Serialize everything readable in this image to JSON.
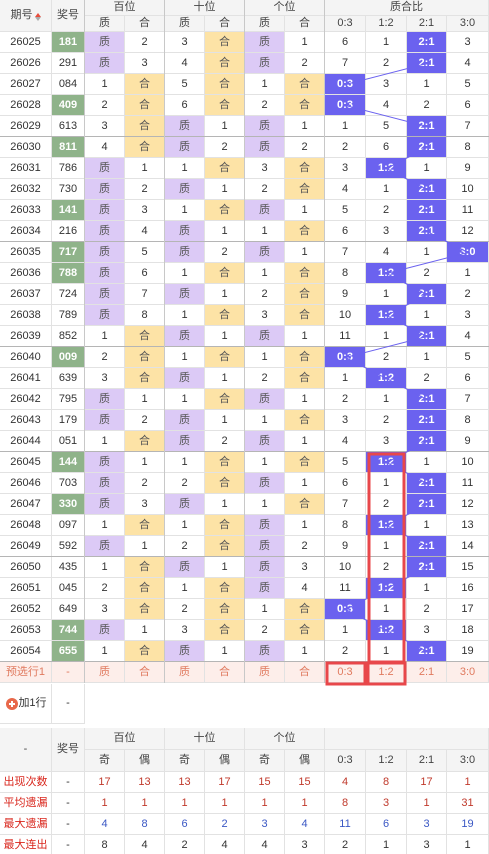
{
  "header": {
    "issue": "期号",
    "number": "奖号",
    "groups": [
      {
        "name": "百位",
        "cols": [
          "质",
          "合"
        ]
      },
      {
        "name": "十位",
        "cols": [
          "质",
          "合"
        ]
      },
      {
        "name": "个位",
        "cols": [
          "质",
          "合"
        ]
      }
    ],
    "ratio": {
      "name": "质合比",
      "cols": [
        "0:3",
        "1:2",
        "2:1",
        "3:0"
      ]
    }
  },
  "rows": [
    {
      "issue": "26025",
      "number": "181",
      "highlight": true,
      "cells": [
        "质",
        2,
        3,
        "合",
        "质",
        1
      ],
      "ratio": [
        6,
        1,
        "2:1",
        3
      ]
    },
    {
      "issue": "26026",
      "number": "291",
      "cells": [
        "质",
        3,
        4,
        "合",
        "质",
        2
      ],
      "ratio": [
        7,
        2,
        "2:1",
        4
      ]
    },
    {
      "issue": "26027",
      "number": "084",
      "cells": [
        1,
        "合",
        5,
        "合",
        1,
        "合"
      ],
      "ratio": [
        "0:3",
        3,
        1,
        5
      ]
    },
    {
      "issue": "26028",
      "number": "409",
      "highlight": true,
      "cells": [
        2,
        "合",
        6,
        "合",
        2,
        "合"
      ],
      "ratio": [
        "0:3",
        4,
        2,
        6
      ]
    },
    {
      "issue": "26029",
      "number": "613",
      "cells": [
        3,
        "合",
        "质",
        1,
        "质",
        1
      ],
      "ratio": [
        1,
        5,
        "2:1",
        7
      ]
    },
    {
      "issue": "26030",
      "number": "811",
      "highlight": true,
      "cells": [
        4,
        "合",
        "质",
        2,
        "质",
        2
      ],
      "ratio": [
        2,
        6,
        "2:1",
        8
      ]
    },
    {
      "issue": "26031",
      "number": "786",
      "cells": [
        "质",
        1,
        1,
        "合",
        3,
        "合"
      ],
      "ratio": [
        3,
        "1:2",
        1,
        9
      ]
    },
    {
      "issue": "26032",
      "number": "730",
      "cells": [
        "质",
        2,
        "质",
        1,
        2,
        "合"
      ],
      "ratio": [
        4,
        1,
        "2:1",
        10
      ]
    },
    {
      "issue": "26033",
      "number": "141",
      "highlight": true,
      "cells": [
        "质",
        3,
        1,
        "合",
        "质",
        1
      ],
      "ratio": [
        5,
        2,
        "2:1",
        11
      ]
    },
    {
      "issue": "26034",
      "number": "216",
      "cells": [
        "质",
        4,
        "质",
        1,
        1,
        "合"
      ],
      "ratio": [
        6,
        3,
        "2:1",
        12
      ]
    },
    {
      "issue": "26035",
      "number": "717",
      "highlight": true,
      "cells": [
        "质",
        5,
        "质",
        2,
        "质",
        1
      ],
      "ratio": [
        7,
        4,
        1,
        "3:0"
      ]
    },
    {
      "issue": "26036",
      "number": "788",
      "highlight": true,
      "cells": [
        "质",
        6,
        1,
        "合",
        1,
        "合"
      ],
      "ratio": [
        8,
        "1:2",
        2,
        1
      ]
    },
    {
      "issue": "26037",
      "number": "724",
      "cells": [
        "质",
        7,
        "质",
        1,
        2,
        "合"
      ],
      "ratio": [
        9,
        1,
        "2:1",
        2
      ]
    },
    {
      "issue": "26038",
      "number": "789",
      "cells": [
        "质",
        8,
        1,
        "合",
        3,
        "合"
      ],
      "ratio": [
        10,
        "1:2",
        1,
        3
      ]
    },
    {
      "issue": "26039",
      "number": "852",
      "cells": [
        1,
        "合",
        "质",
        1,
        "质",
        1
      ],
      "ratio": [
        11,
        1,
        "2:1",
        4
      ]
    },
    {
      "issue": "26040",
      "number": "009",
      "highlight": true,
      "cells": [
        2,
        "合",
        1,
        "合",
        1,
        "合"
      ],
      "ratio": [
        "0:3",
        2,
        1,
        5
      ]
    },
    {
      "issue": "26041",
      "number": "639",
      "cells": [
        3,
        "合",
        "质",
        1,
        2,
        "合"
      ],
      "ratio": [
        1,
        "1:2",
        2,
        6
      ]
    },
    {
      "issue": "26042",
      "number": "795",
      "cells": [
        "质",
        1,
        1,
        "合",
        "质",
        1
      ],
      "ratio": [
        2,
        1,
        "2:1",
        7
      ]
    },
    {
      "issue": "26043",
      "number": "179",
      "cells": [
        "质",
        2,
        "质",
        1,
        1,
        "合"
      ],
      "ratio": [
        3,
        2,
        "2:1",
        8
      ]
    },
    {
      "issue": "26044",
      "number": "051",
      "cells": [
        1,
        "合",
        "质",
        2,
        "质",
        1
      ],
      "ratio": [
        4,
        3,
        "2:1",
        9
      ]
    },
    {
      "issue": "26045",
      "number": "144",
      "highlight": true,
      "cells": [
        "质",
        1,
        1,
        "合",
        1,
        "合"
      ],
      "ratio": [
        5,
        "1:2",
        1,
        10
      ]
    },
    {
      "issue": "26046",
      "number": "703",
      "cells": [
        "质",
        2,
        2,
        "合",
        "质",
        1
      ],
      "ratio": [
        6,
        1,
        "2:1",
        11
      ]
    },
    {
      "issue": "26047",
      "number": "330",
      "highlight": true,
      "cells": [
        "质",
        3,
        "质",
        1,
        1,
        "合"
      ],
      "ratio": [
        7,
        2,
        "2:1",
        12
      ]
    },
    {
      "issue": "26048",
      "number": "097",
      "cells": [
        1,
        "合",
        1,
        "合",
        "质",
        1
      ],
      "ratio": [
        8,
        "1:2",
        1,
        13
      ]
    },
    {
      "issue": "26049",
      "number": "592",
      "cells": [
        "质",
        1,
        2,
        "合",
        "质",
        2
      ],
      "ratio": [
        9,
        1,
        "2:1",
        14
      ]
    },
    {
      "issue": "26050",
      "number": "435",
      "cells": [
        1,
        "合",
        "质",
        1,
        "质",
        3
      ],
      "ratio": [
        10,
        2,
        "2:1",
        15
      ]
    },
    {
      "issue": "26051",
      "number": "045",
      "cells": [
        2,
        "合",
        1,
        "合",
        "质",
        4
      ],
      "ratio": [
        11,
        "1:2",
        1,
        16
      ]
    },
    {
      "issue": "26052",
      "number": "649",
      "cells": [
        3,
        "合",
        2,
        "合",
        1,
        "合"
      ],
      "ratio": [
        "0:3",
        1,
        2,
        17
      ]
    },
    {
      "issue": "26053",
      "number": "744",
      "highlight": true,
      "cells": [
        "质",
        1,
        3,
        "合",
        2,
        "合"
      ],
      "ratio": [
        1,
        "1:2",
        3,
        18
      ]
    },
    {
      "issue": "26054",
      "number": "655",
      "highlight": true,
      "cells": [
        1,
        "合",
        "质",
        1,
        "质",
        1
      ],
      "ratio": [
        2,
        1,
        "2:1",
        19
      ]
    }
  ],
  "preselect": {
    "label": "预选行1",
    "number": "-",
    "cells": [
      "质",
      "合",
      "质",
      "合",
      "质",
      "合"
    ],
    "ratio": [
      "0:3",
      "1:2",
      "2:1",
      "3:0"
    ]
  },
  "add_row": {
    "label": "加1行",
    "number": "-"
  },
  "stats_header": {
    "first": "-",
    "number": "奖号",
    "groups": [
      {
        "name": "百位",
        "cols": [
          "奇",
          "偶"
        ]
      },
      {
        "name": "十位",
        "cols": [
          "奇",
          "偶"
        ]
      },
      {
        "name": "个位",
        "cols": [
          "奇",
          "偶"
        ]
      }
    ],
    "ratio_cols": [
      "0:3",
      "1:2",
      "2:1",
      "3:0"
    ]
  },
  "stats": [
    {
      "label": "出现次数",
      "number": "-",
      "color": "#c0392b",
      "values": [
        17,
        13,
        13,
        17,
        15,
        15,
        4,
        8,
        17,
        1
      ]
    },
    {
      "label": "平均遗漏",
      "number": "-",
      "color": "#c0392b",
      "values": [
        1,
        1,
        1,
        1,
        1,
        1,
        8,
        3,
        1,
        31
      ]
    },
    {
      "label": "最大遗漏",
      "number": "-",
      "color": "#3a57c4",
      "values": [
        4,
        8,
        6,
        2,
        3,
        4,
        11,
        6,
        3,
        19
      ]
    },
    {
      "label": "最大连出",
      "number": "-",
      "color": "#333333",
      "values": [
        8,
        4,
        2,
        4,
        4,
        3,
        2,
        1,
        3,
        1
      ]
    }
  ]
}
